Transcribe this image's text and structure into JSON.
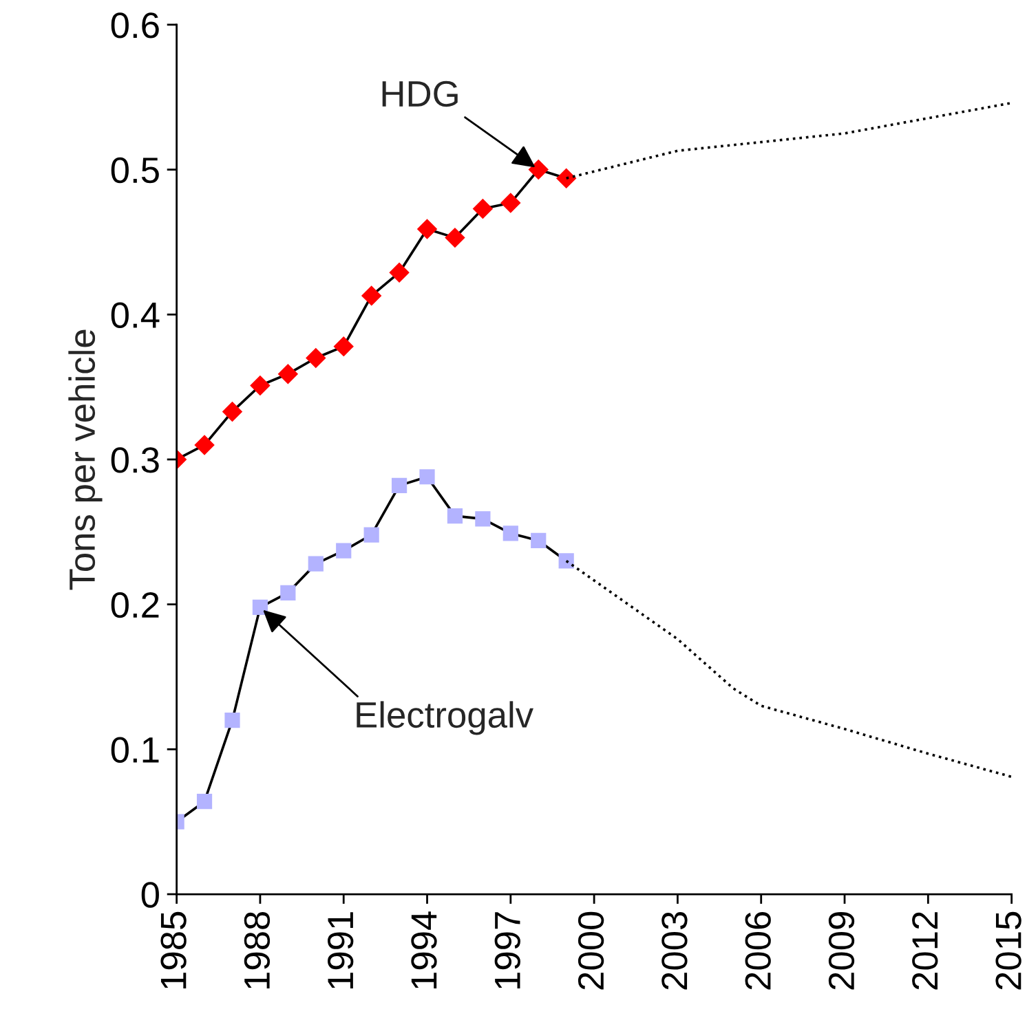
{
  "chart_data": {
    "type": "line",
    "ylabel": "Tons per vehicle",
    "xlim": [
      1985,
      2015
    ],
    "ylim": [
      0,
      0.6
    ],
    "xticks": [
      1985,
      1988,
      1991,
      1994,
      1997,
      2000,
      2003,
      2006,
      2009,
      2012,
      2015
    ],
    "yticks": [
      {
        "value": 0,
        "label": "0"
      },
      0.1,
      0.2,
      0.3,
      0.4,
      0.5,
      0.6
    ],
    "grid": false,
    "series": [
      {
        "color": "#ff0000",
        "marker": "diamond",
        "line_style": "solid",
        "x": [
          1985,
          1986,
          1987,
          1988,
          1989,
          1990,
          1991,
          1992,
          1993,
          1994,
          1995,
          1996,
          1997,
          1998,
          1999
        ],
        "values": [
          0.3,
          0.31,
          0.333,
          0.351,
          0.359,
          0.37,
          0.378,
          0.413,
          0.429,
          0.459,
          0.453,
          0.473,
          0.477,
          0.5,
          0.494
        ]
      },
      {
        "color": "#b3b3ff",
        "marker": "square",
        "line_style": "solid",
        "x": [
          1985,
          1986,
          1987,
          1988,
          1989,
          1990,
          1991,
          1992,
          1993,
          1994,
          1995,
          1996,
          1997,
          1998,
          1999
        ],
        "values": [
          0.05,
          0.064,
          0.12,
          0.198,
          0.208,
          0.228,
          0.237,
          0.248,
          0.282,
          0.288,
          0.261,
          0.259,
          0.249,
          0.244,
          0.23
        ]
      },
      {
        "color": "#000000",
        "marker": "none",
        "line_style": "dotted",
        "x": [
          1999,
          2003,
          2009,
          2015
        ],
        "values": [
          0.494,
          0.513,
          0.525,
          0.546
        ]
      },
      {
        "color": "#000000",
        "marker": "none",
        "line_style": "dotted",
        "x": [
          1999,
          2003,
          2004,
          2005,
          2006,
          2009,
          2012,
          2015
        ],
        "values": [
          0.23,
          0.176,
          0.159,
          0.142,
          0.13,
          0.114,
          0.097,
          0.081
        ]
      }
    ],
    "annotations": [
      {
        "text": "HDG",
        "x": 1998,
        "y": 0.5
      },
      {
        "text": "Electrogalv",
        "x": 1988,
        "y": 0.198
      }
    ]
  }
}
